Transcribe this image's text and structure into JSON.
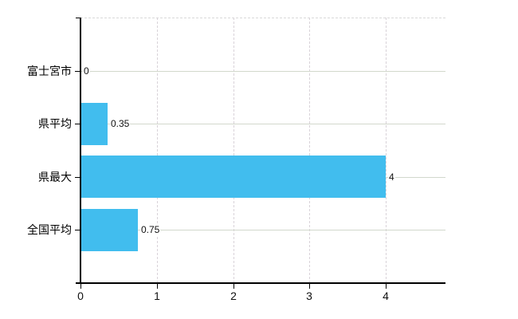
{
  "chart_data": {
    "type": "bar",
    "orientation": "horizontal",
    "title": "",
    "categories": [
      "富士宮市",
      "県平均",
      "県最大",
      "全国平均"
    ],
    "values": [
      0,
      0.35,
      4,
      0.75
    ],
    "value_labels": [
      "0",
      "0.35",
      "4",
      "0.75"
    ],
    "x_tick_labels": [
      "0",
      "1",
      "2",
      "3",
      "4"
    ],
    "x_tick_values": [
      0,
      1,
      2,
      3,
      4
    ],
    "xlim": [
      0,
      4.78
    ],
    "ylabel": "",
    "xlabel": "",
    "grid": true,
    "legend": false,
    "colors": {
      "bar": "#41bdee",
      "axis": "#000000",
      "gridline_horizontal": "#d2d8cc",
      "gridline_vertical": "#d9d3d9",
      "text": "#000000",
      "background": "#ffffff"
    }
  }
}
